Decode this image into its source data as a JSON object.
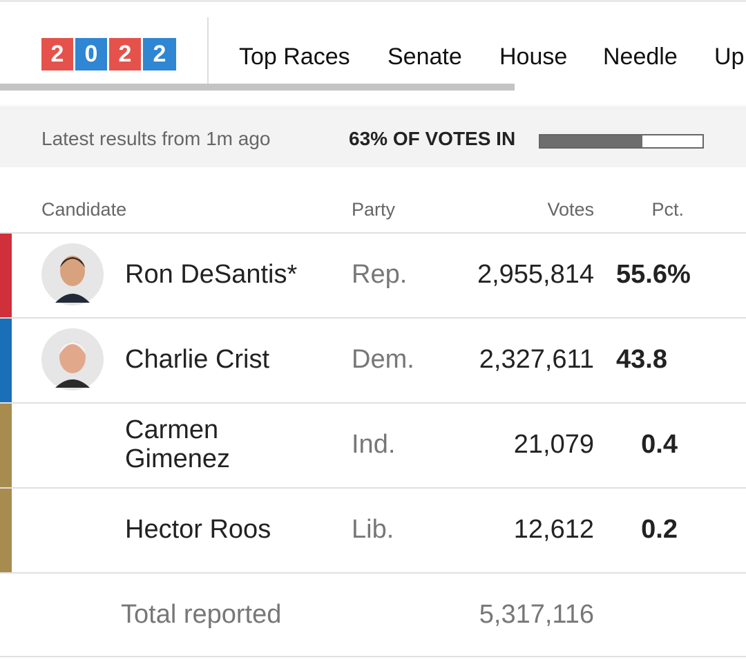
{
  "logo": {
    "digits": [
      "2",
      "0",
      "2",
      "2"
    ]
  },
  "nav": [
    "Top Races",
    "Senate",
    "House",
    "Needle",
    "Up"
  ],
  "status": {
    "latest": "Latest results from 1m ago",
    "votes_in_label": "63% OF VOTES IN",
    "votes_in_pct": 63
  },
  "table": {
    "headers": [
      "Candidate",
      "Party",
      "Votes",
      "Pct."
    ],
    "rows": [
      [
        "Ron DeSantis*",
        "Rep.",
        "2,955,814",
        "55.6%"
      ],
      [
        "Charlie Crist",
        "Dem.",
        "2,327,611",
        "43.8"
      ],
      [
        "Carmen Gimenez",
        "Ind.",
        "21,079",
        "0.4"
      ],
      [
        "Hector Roos",
        "Lib.",
        "12,612",
        "0.2"
      ]
    ],
    "total": [
      "Total reported",
      "5,317,116"
    ]
  }
}
